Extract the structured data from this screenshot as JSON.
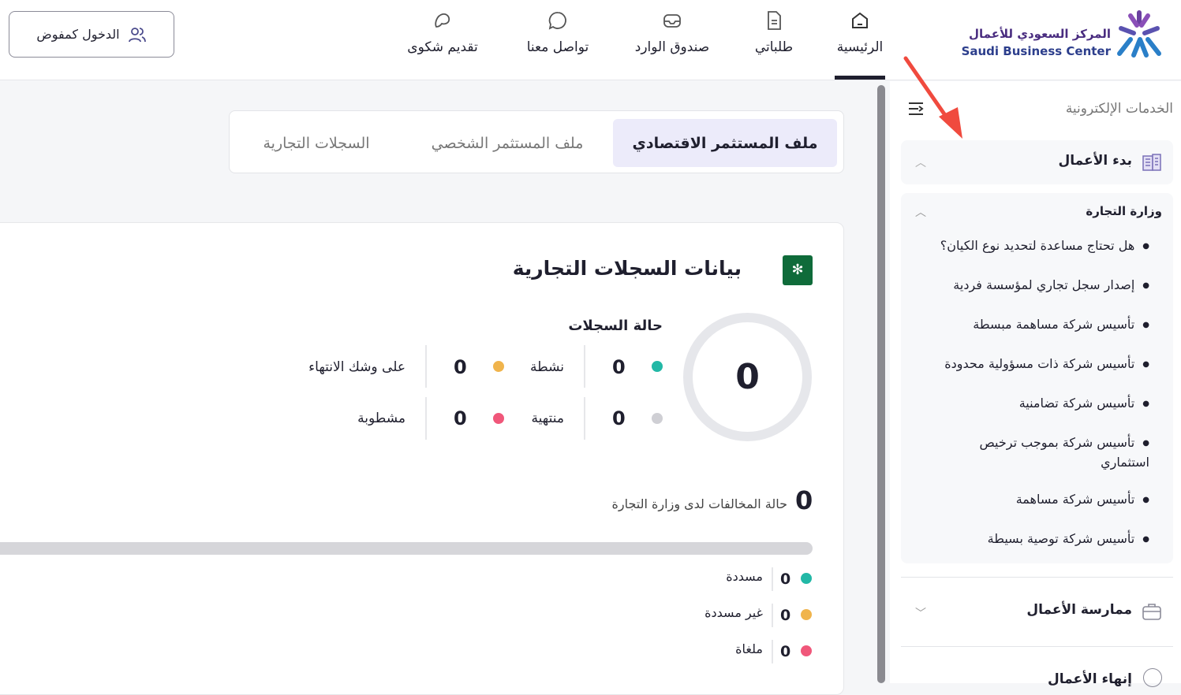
{
  "brand": {
    "name_ar": "المركز السعودي للأعمال",
    "name_en": "Saudi Business Center"
  },
  "nav": [
    {
      "label": "الرئيسية",
      "icon": "home-icon",
      "active": true
    },
    {
      "label": "طلباتي",
      "icon": "document-icon"
    },
    {
      "label": "صندوق الوارد",
      "icon": "inbox-icon"
    },
    {
      "label": "تواصل معنا",
      "icon": "chat-icon"
    },
    {
      "label": "تقديم شكوى",
      "icon": "complaint-icon"
    }
  ],
  "login_label": "الدخول كمفوض",
  "sidebar": {
    "title": "الخدمات الإلكترونية",
    "sections": [
      {
        "label": "بدء الأعمال",
        "expanded": true
      },
      {
        "label": "ممارسة الأعمال",
        "expanded": false
      },
      {
        "label": "إنهاء الأعمال",
        "expanded": false
      }
    ],
    "group": {
      "title": "وزارة التجارة",
      "items": [
        "هل تحتاج مساعدة لتحديد نوع الكيان؟",
        "إصدار سجل تجاري لمؤسسة فردية",
        "تأسيس شركة مساهمة مبسطة",
        "تأسيس شركة ذات مسؤولية محدودة",
        "تأسيس شركة تضامنية",
        "تأسيس شركة بموجب ترخيص استثماري",
        "تأسيس شركة مساهمة",
        "تأسيس شركة توصية بسيطة"
      ]
    }
  },
  "tabs": [
    {
      "label": "ملف المستثمر الاقتصادي",
      "active": true
    },
    {
      "label": "ملف المستثمر الشخصي"
    },
    {
      "label": "السجلات التجارية"
    }
  ],
  "records": {
    "title": "بيانات السجلات التجارية",
    "total": "0",
    "status_title": "حالة السجلات",
    "statuses": [
      {
        "label": "نشطة",
        "value": "0",
        "color": "#22b8a6"
      },
      {
        "label": "على وشك الانتهاء",
        "value": "0",
        "color": "#f0b44c"
      },
      {
        "label": "منتهية",
        "value": "0",
        "color": "#cfcfd4"
      },
      {
        "label": "مشطوبة",
        "value": "0",
        "color": "#f0577a"
      }
    ],
    "violations": {
      "count": "0",
      "label": "حالة المخالفات لدى وزارة التجارة",
      "progress": 0,
      "items": [
        {
          "label": "مسددة",
          "value": "0",
          "color": "#22b8a6"
        },
        {
          "label": "غير مسددة",
          "value": "0",
          "color": "#f0b44c"
        },
        {
          "label": "ملغاة",
          "value": "0",
          "color": "#f0577a"
        }
      ]
    }
  },
  "colors": {
    "accent": "#ecebfa",
    "annotation_arrow": "#f04a3e"
  }
}
